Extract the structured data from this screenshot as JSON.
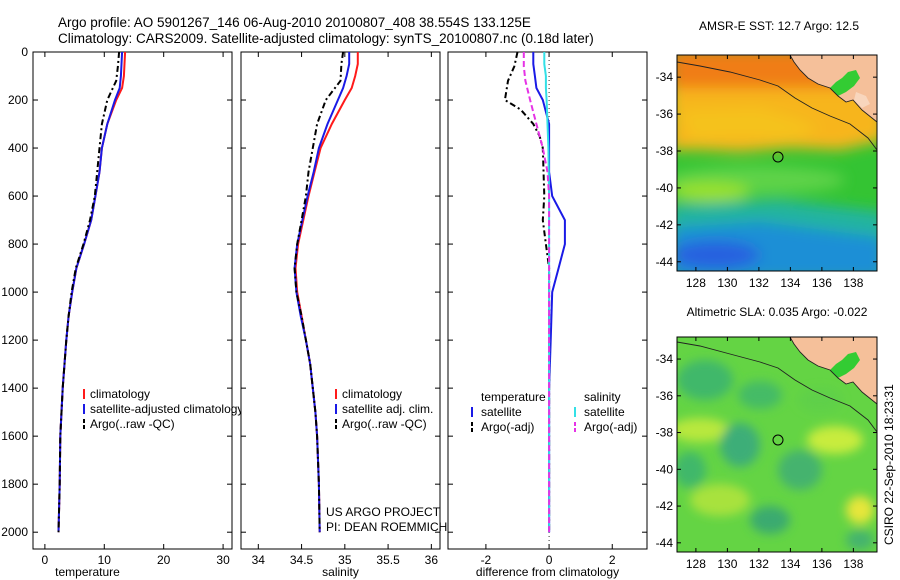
{
  "header": {
    "line1": "Argo profile: AO 5901267_146 06-Aug-2010 20100807_408 38.554S 133.125E",
    "line2": "Climatology: CARS2009. Satellite-adjusted climatology: synTS_20100807.nc (0.18d later)"
  },
  "side_label": "CSIRO  22-Sep-2010 18:23:31",
  "colors": {
    "climatology": "#ff1a1a",
    "satellite": "#1a1ae6",
    "argo": "#000000",
    "salinity_satellite": "#33e0e6",
    "salinity_argo": "#e633e6",
    "land": "#f5c09a"
  },
  "chart_data": [
    {
      "type": "line",
      "id": "temperature",
      "xlabel": "temperature",
      "ylabel": "",
      "xlim": [
        -2,
        31.5
      ],
      "ylim": [
        2070,
        0
      ],
      "xticks": [
        0,
        10,
        20,
        30
      ],
      "yticks": [
        0,
        200,
        400,
        600,
        800,
        1000,
        1200,
        1400,
        1600,
        1800,
        2000
      ],
      "legend": [
        "climatology",
        "satellite-adjusted climatology",
        "Argo(..raw -QC)"
      ],
      "series": [
        {
          "name": "climatology",
          "color": "#ff1a1a",
          "dash": "",
          "points": [
            [
              13.5,
              0
            ],
            [
              13.4,
              50
            ],
            [
              13.3,
              100
            ],
            [
              13.0,
              150
            ],
            [
              12.0,
              200
            ],
            [
              10.5,
              300
            ],
            [
              9.6,
              400
            ],
            [
              9.2,
              500
            ],
            [
              8.5,
              600
            ],
            [
              7.8,
              700
            ],
            [
              6.6,
              800
            ],
            [
              5.3,
              900
            ],
            [
              4.6,
              1000
            ],
            [
              4.0,
              1100
            ],
            [
              3.6,
              1200
            ],
            [
              3.3,
              1300
            ],
            [
              3.0,
              1400
            ],
            [
              2.8,
              1500
            ],
            [
              2.6,
              1600
            ],
            [
              2.5,
              1800
            ],
            [
              2.3,
              2000
            ]
          ]
        },
        {
          "name": "satellite-adjusted climatology",
          "color": "#1a1ae6",
          "dash": "",
          "points": [
            [
              13.0,
              0
            ],
            [
              12.9,
              50
            ],
            [
              12.8,
              100
            ],
            [
              12.6,
              150
            ],
            [
              11.8,
              200
            ],
            [
              10.5,
              300
            ],
            [
              9.6,
              400
            ],
            [
              9.2,
              500
            ],
            [
              8.5,
              600
            ],
            [
              7.8,
              700
            ],
            [
              6.6,
              800
            ],
            [
              5.3,
              900
            ],
            [
              4.6,
              1000
            ],
            [
              4.0,
              1100
            ],
            [
              3.6,
              1200
            ],
            [
              3.3,
              1300
            ],
            [
              3.0,
              1400
            ],
            [
              2.8,
              1500
            ],
            [
              2.6,
              1600
            ],
            [
              2.5,
              1800
            ],
            [
              2.3,
              2000
            ]
          ]
        },
        {
          "name": "Argo(..raw -QC)",
          "color": "#000000",
          "dash": "6,3,2,3",
          "points": [
            [
              12.5,
              0
            ],
            [
              12.3,
              60
            ],
            [
              12.0,
              120
            ],
            [
              10.5,
              200
            ],
            [
              9.6,
              300
            ],
            [
              9.2,
              400
            ],
            [
              8.8,
              500
            ],
            [
              8.4,
              600
            ],
            [
              7.6,
              700
            ],
            [
              6.5,
              800
            ],
            [
              5.2,
              900
            ],
            [
              4.5,
              1000
            ],
            [
              4.0,
              1100
            ],
            [
              3.6,
              1200
            ],
            [
              3.3,
              1300
            ],
            [
              3.0,
              1400
            ],
            [
              2.8,
              1500
            ],
            [
              2.6,
              1600
            ],
            [
              2.5,
              1800
            ],
            [
              2.3,
              2000
            ]
          ]
        }
      ]
    },
    {
      "type": "line",
      "id": "salinity",
      "xlabel": "salinity",
      "ylabel": "",
      "xlim": [
        33.8,
        36.1
      ],
      "ylim": [
        2070,
        0
      ],
      "xticks": [
        34,
        34.5,
        35,
        35.5,
        36
      ],
      "xticklabels": [
        "34",
        "34.5",
        "35",
        "35.5",
        "36"
      ],
      "legend": [
        "climatology",
        "satellite adj. clim.",
        "Argo(..raw -QC)"
      ],
      "annotations": [
        "US ARGO PROJECT",
        "PI: DEAN ROEMMICH"
      ],
      "series": [
        {
          "name": "climatology",
          "color": "#ff1a1a",
          "dash": "",
          "points": [
            [
              35.15,
              0
            ],
            [
              35.15,
              50
            ],
            [
              35.12,
              100
            ],
            [
              35.08,
              150
            ],
            [
              35.0,
              200
            ],
            [
              34.85,
              300
            ],
            [
              34.72,
              400
            ],
            [
              34.65,
              500
            ],
            [
              34.58,
              600
            ],
            [
              34.52,
              700
            ],
            [
              34.46,
              800
            ],
            [
              34.43,
              900
            ],
            [
              34.45,
              1000
            ],
            [
              34.5,
              1100
            ],
            [
              34.55,
              1200
            ],
            [
              34.6,
              1300
            ],
            [
              34.63,
              1400
            ],
            [
              34.66,
              1500
            ],
            [
              34.68,
              1600
            ],
            [
              34.7,
              1800
            ],
            [
              34.71,
              2000
            ]
          ]
        },
        {
          "name": "satellite adj. clim.",
          "color": "#1a1ae6",
          "dash": "",
          "points": [
            [
              35.05,
              0
            ],
            [
              35.05,
              50
            ],
            [
              35.02,
              100
            ],
            [
              34.98,
              150
            ],
            [
              34.92,
              200
            ],
            [
              34.8,
              300
            ],
            [
              34.7,
              400
            ],
            [
              34.64,
              500
            ],
            [
              34.57,
              600
            ],
            [
              34.51,
              700
            ],
            [
              34.45,
              800
            ],
            [
              34.42,
              900
            ],
            [
              34.44,
              1000
            ],
            [
              34.49,
              1100
            ],
            [
              34.55,
              1200
            ],
            [
              34.6,
              1300
            ],
            [
              34.63,
              1400
            ],
            [
              34.66,
              1500
            ],
            [
              34.68,
              1600
            ],
            [
              34.7,
              1800
            ],
            [
              34.71,
              2000
            ]
          ]
        },
        {
          "name": "Argo(..raw -QC)",
          "color": "#000000",
          "dash": "6,3,2,3",
          "points": [
            [
              34.98,
              0
            ],
            [
              34.96,
              50
            ],
            [
              34.95,
              120
            ],
            [
              34.78,
              200
            ],
            [
              34.68,
              300
            ],
            [
              34.63,
              400
            ],
            [
              34.58,
              500
            ],
            [
              34.55,
              600
            ],
            [
              34.5,
              700
            ],
            [
              34.45,
              800
            ],
            [
              34.42,
              900
            ],
            [
              34.44,
              1000
            ],
            [
              34.5,
              1100
            ],
            [
              34.55,
              1200
            ],
            [
              34.6,
              1300
            ],
            [
              34.63,
              1400
            ],
            [
              34.66,
              1500
            ],
            [
              34.68,
              1600
            ],
            [
              34.7,
              1800
            ],
            [
              34.71,
              2000
            ]
          ]
        }
      ]
    },
    {
      "type": "line",
      "id": "difference",
      "xlabel": "difference from climatology",
      "ylabel": "",
      "xlim": [
        -3.2,
        3.1
      ],
      "ylim": [
        2070,
        0
      ],
      "xticks": [
        -2,
        0,
        2
      ],
      "legend_groups": [
        {
          "title": "temperature",
          "items": [
            "satellite",
            "Argo(-adj)"
          ]
        },
        {
          "title": "salinity",
          "items": [
            "satellite",
            "Argo(-adj)"
          ]
        }
      ],
      "series": [
        {
          "name": "temperature satellite",
          "color": "#1a1ae6",
          "dash": "",
          "points": [
            [
              -0.5,
              0
            ],
            [
              -0.5,
              50
            ],
            [
              -0.45,
              100
            ],
            [
              -0.4,
              150
            ],
            [
              -0.2,
              200
            ],
            [
              0,
              300
            ],
            [
              0,
              400
            ],
            [
              0,
              500
            ],
            [
              0.1,
              600
            ],
            [
              0.5,
              700
            ],
            [
              0.5,
              800
            ],
            [
              0.3,
              900
            ],
            [
              0.1,
              1000
            ],
            [
              0.05,
              1200
            ],
            [
              0,
              1400
            ],
            [
              0,
              1600
            ],
            [
              0,
              2000
            ]
          ]
        },
        {
          "name": "temperature Argo(-adj)",
          "color": "#000000",
          "dash": "6,3,2,3",
          "points": [
            [
              -1.0,
              0
            ],
            [
              -1.1,
              60
            ],
            [
              -1.3,
              120
            ],
            [
              -1.4,
              200
            ],
            [
              -0.9,
              240
            ],
            [
              -0.5,
              300
            ],
            [
              -0.3,
              350
            ],
            [
              -0.2,
              400
            ],
            [
              -0.15,
              600
            ],
            [
              -0.2,
              700
            ],
            [
              -0.1,
              800
            ],
            [
              0,
              900
            ],
            [
              0,
              1000
            ],
            [
              0,
              1200
            ],
            [
              0,
              1400
            ],
            [
              0,
              1600
            ],
            [
              0,
              2000
            ]
          ]
        },
        {
          "name": "salinity satellite",
          "color": "#33e0e6",
          "dash": "",
          "points": [
            [
              -0.15,
              0
            ],
            [
              -0.15,
              50
            ],
            [
              -0.1,
              100
            ],
            [
              -0.1,
              150
            ],
            [
              -0.08,
              200
            ],
            [
              -0.05,
              300
            ],
            [
              -0.02,
              400
            ],
            [
              0,
              600
            ],
            [
              0,
              800
            ],
            [
              0,
              1000
            ],
            [
              0,
              1200
            ],
            [
              0,
              1400
            ],
            [
              0,
              1600
            ],
            [
              0,
              2000
            ]
          ]
        },
        {
          "name": "salinity Argo(-adj)",
          "color": "#e633e6",
          "dash": "6,3",
          "points": [
            [
              -0.8,
              0
            ],
            [
              -0.8,
              60
            ],
            [
              -0.75,
              120
            ],
            [
              -0.6,
              200
            ],
            [
              -0.4,
              300
            ],
            [
              -0.2,
              400
            ],
            [
              -0.05,
              500
            ],
            [
              0,
              600
            ],
            [
              0,
              800
            ],
            [
              0,
              1000
            ],
            [
              0,
              1200
            ],
            [
              0,
              1400
            ],
            [
              0,
              1600
            ],
            [
              0,
              2000
            ]
          ]
        }
      ]
    },
    {
      "type": "heatmap",
      "id": "sst_map",
      "title": "AMSR-E SST: 12.7  Argo: 12.5",
      "xlim": [
        126.8,
        139.5
      ],
      "ylim": [
        -44.5,
        -32.8
      ],
      "xticks": [
        128,
        130,
        132,
        134,
        136,
        138
      ],
      "yticks": [
        -34,
        -36,
        -38,
        -40,
        -42,
        -44
      ],
      "float_position": {
        "lon": 133.125,
        "lat": -38.554
      }
    },
    {
      "type": "heatmap",
      "id": "sla_map",
      "title": "Altimetric SLA: 0.035  Argo: -0.022",
      "xlim": [
        126.8,
        139.5
      ],
      "ylim": [
        -44.5,
        -32.8
      ],
      "xticks": [
        128,
        130,
        132,
        134,
        136,
        138
      ],
      "yticks": [
        -34,
        -36,
        -38,
        -40,
        -42,
        -44
      ],
      "float_position": {
        "lon": 133.125,
        "lat": -38.554
      }
    }
  ]
}
